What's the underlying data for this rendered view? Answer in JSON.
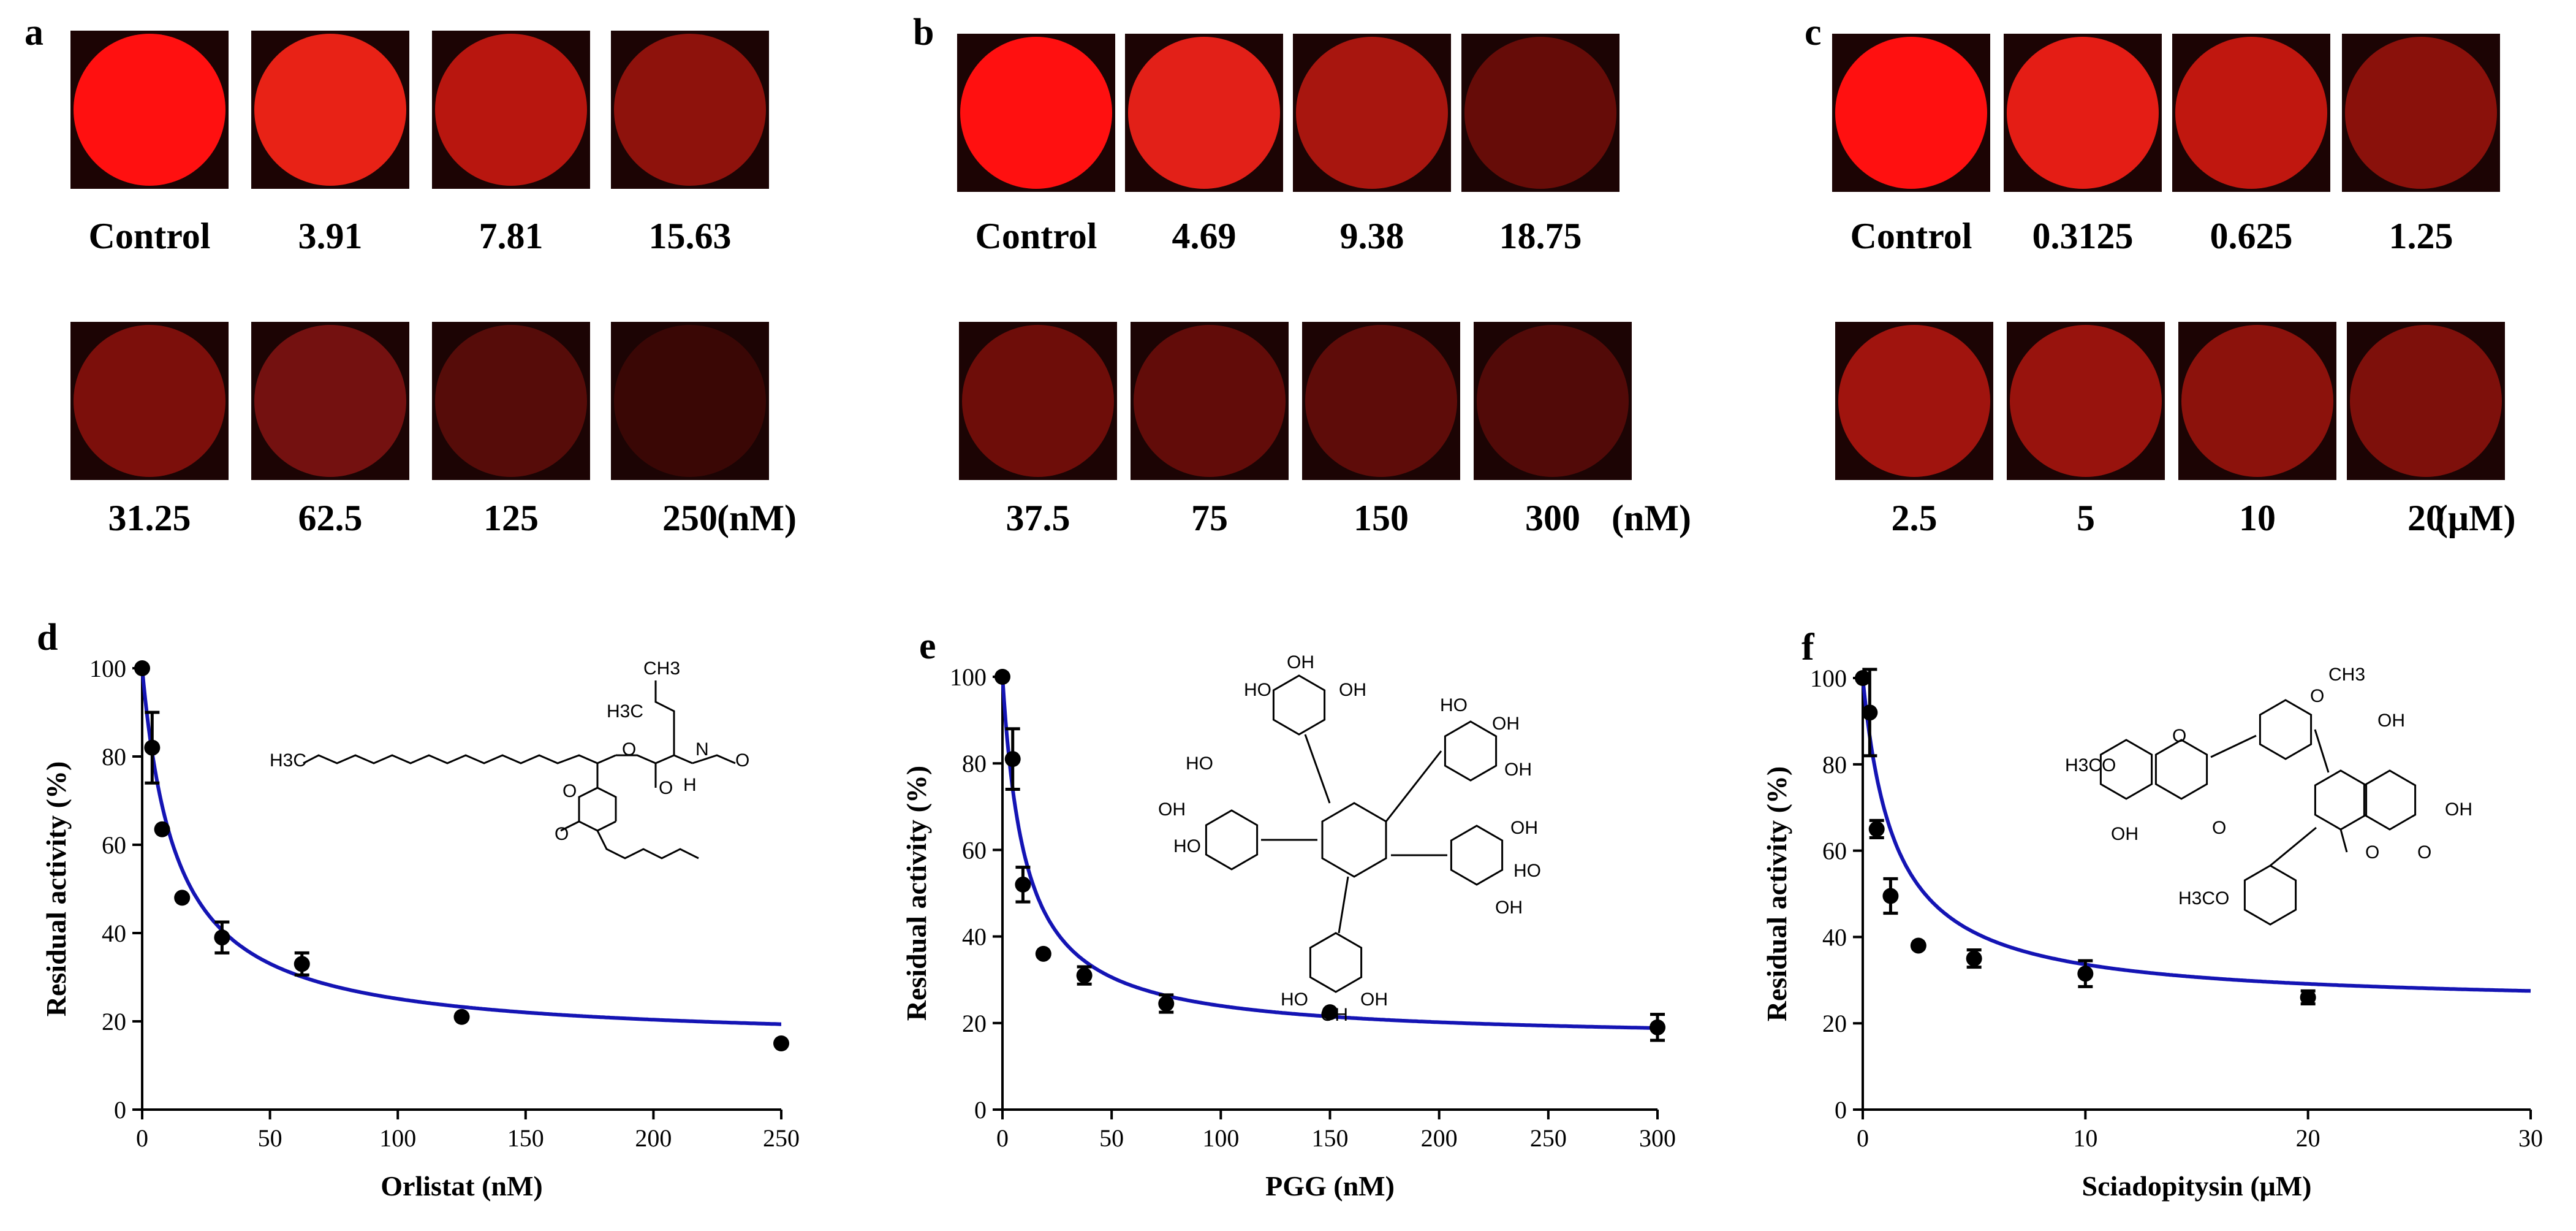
{
  "imaging_panels": [
    {
      "letter": "a",
      "unit": "(nM)",
      "wells": [
        {
          "label": "Control",
          "color": "#ff1010"
        },
        {
          "label": "3.91",
          "color": "#e82216"
        },
        {
          "label": "7.81",
          "color": "#b8160f"
        },
        {
          "label": "15.63",
          "color": "#8e120c"
        },
        {
          "label": "31.25",
          "color": "#7c0f0b"
        },
        {
          "label": "62.5",
          "color": "#741110"
        },
        {
          "label": "125",
          "color": "#560c09"
        },
        {
          "label": "250",
          "color": "#3a0705"
        }
      ]
    },
    {
      "letter": "b",
      "unit": "(nM)",
      "wells": [
        {
          "label": "Control",
          "color": "#ff1010"
        },
        {
          "label": "4.69",
          "color": "#e22018"
        },
        {
          "label": "9.38",
          "color": "#a8160f"
        },
        {
          "label": "18.75",
          "color": "#660c08"
        },
        {
          "label": "37.5",
          "color": "#6e0d09"
        },
        {
          "label": "75",
          "color": "#620c09"
        },
        {
          "label": "150",
          "color": "#5e0c09"
        },
        {
          "label": "300",
          "color": "#520a08"
        }
      ]
    },
    {
      "letter": "c",
      "unit": "(μM)",
      "wells": [
        {
          "label": "Control",
          "color": "#ff1010"
        },
        {
          "label": "0.3125",
          "color": "#e41d15"
        },
        {
          "label": "0.625",
          "color": "#c0170f"
        },
        {
          "label": "1.25",
          "color": "#8a110b"
        },
        {
          "label": "2.5",
          "color": "#a0140e"
        },
        {
          "label": "5",
          "color": "#98130d"
        },
        {
          "label": "10",
          "color": "#8c120c"
        },
        {
          "label": "20",
          "color": "#7e100b"
        }
      ]
    }
  ],
  "chart_data": [
    {
      "letter": "d",
      "type": "scatter",
      "xlabel": "Orlistat  (nM)",
      "ylabel": "Residual activity (%)",
      "xlim": [
        0,
        250
      ],
      "ylim": [
        0,
        100
      ],
      "xticks": [
        0,
        50,
        100,
        150,
        200,
        250
      ],
      "yticks": [
        0,
        20,
        40,
        60,
        80,
        100
      ],
      "curve_color": "#1414b4",
      "fit": {
        "bottom": 15.0,
        "top": 100,
        "ic50": 13.5
      },
      "points": [
        {
          "x": 0,
          "y": 100,
          "err": 0
        },
        {
          "x": 3.91,
          "y": 82,
          "err": 8
        },
        {
          "x": 7.81,
          "y": 63.5,
          "err": 0
        },
        {
          "x": 15.63,
          "y": 48,
          "err": 0
        },
        {
          "x": 31.25,
          "y": 39,
          "err": 3.5
        },
        {
          "x": 62.5,
          "y": 33,
          "err": 2.5
        },
        {
          "x": 125,
          "y": 21,
          "err": 0
        },
        {
          "x": 250,
          "y": 15,
          "err": 0
        }
      ],
      "structure": {
        "name": "Orlistat",
        "labels": [
          "CH3",
          "H3C",
          "H3C",
          "H",
          "N",
          "O",
          "O",
          "O",
          "O",
          "O"
        ]
      }
    },
    {
      "letter": "e",
      "type": "scatter",
      "xlabel": "PGG  (nM)",
      "ylabel": "Residual activity (%)",
      "xlim": [
        0,
        300
      ],
      "ylim": [
        0,
        100
      ],
      "xticks": [
        0,
        50,
        100,
        150,
        200,
        250,
        300
      ],
      "yticks": [
        0,
        20,
        40,
        60,
        80,
        100
      ],
      "curve_color": "#1414b4",
      "fit": {
        "bottom": 16.0,
        "top": 100,
        "ic50": 10.5
      },
      "points": [
        {
          "x": 0,
          "y": 100,
          "err": 0
        },
        {
          "x": 4.69,
          "y": 81,
          "err": 7
        },
        {
          "x": 9.38,
          "y": 52,
          "err": 4
        },
        {
          "x": 18.75,
          "y": 36,
          "err": 0
        },
        {
          "x": 37.5,
          "y": 31,
          "err": 2
        },
        {
          "x": 75,
          "y": 24.5,
          "err": 2
        },
        {
          "x": 150,
          "y": 22.5,
          "err": 0
        },
        {
          "x": 300,
          "y": 19,
          "err": 3
        }
      ],
      "structure": {
        "name": "PGG",
        "labels": [
          "OH",
          "HO",
          "OH",
          "HO",
          "OH",
          "OH",
          "HO",
          "OH",
          "HO",
          "OH",
          "HO",
          "OH",
          "HO",
          "OH",
          "OH"
        ]
      }
    },
    {
      "letter": "f",
      "type": "scatter",
      "xlabel": "Sciadopitysin (μM)",
      "ylabel": "Residual activity (%)",
      "xlim": [
        0,
        30
      ],
      "ylim": [
        0,
        100
      ],
      "xticks": [
        0,
        10,
        20,
        30
      ],
      "yticks": [
        0,
        20,
        40,
        60,
        80,
        100
      ],
      "curve_color": "#1414b4",
      "fit": {
        "bottom": 24.0,
        "top": 100,
        "ic50": 1.45
      },
      "points": [
        {
          "x": 0,
          "y": 100,
          "err": 0
        },
        {
          "x": 0.3125,
          "y": 92,
          "err": 10
        },
        {
          "x": 0.625,
          "y": 65,
          "err": 2
        },
        {
          "x": 1.25,
          "y": 49.5,
          "err": 4
        },
        {
          "x": 2.5,
          "y": 38,
          "err": 0
        },
        {
          "x": 5,
          "y": 35,
          "err": 2
        },
        {
          "x": 10,
          "y": 31.5,
          "err": 3
        },
        {
          "x": 20,
          "y": 26,
          "err": 1.5
        }
      ],
      "structure": {
        "name": "Sciadopitysin",
        "labels": [
          "CH3",
          "O",
          "OH",
          "H3C",
          "O",
          "O",
          "OH",
          "OH",
          "O",
          "O",
          "H3C",
          "O",
          "O"
        ]
      }
    }
  ]
}
